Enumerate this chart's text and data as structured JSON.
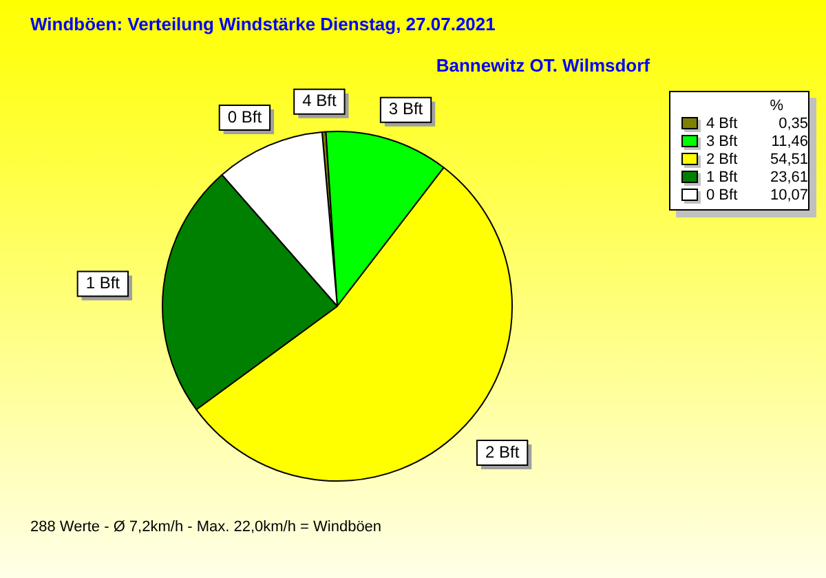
{
  "chart_data": {
    "type": "pie",
    "title": "Windböen: Verteilung Windstärke  Dienstag, 27.07.2021",
    "subtitle": "Bannewitz OT. Wilmsdorf",
    "categories": [
      "4 Bft",
      "3 Bft",
      "2 Bft",
      "1 Bft",
      "0 Bft"
    ],
    "values": [
      0.35,
      11.46,
      54.51,
      23.61,
      10.07
    ],
    "value_labels": [
      "0,35",
      "11,46",
      "54,51",
      "23,61",
      "10,07"
    ],
    "colors": [
      "#808000",
      "#00ff00",
      "#ffff00",
      "#008000",
      "#ffffff"
    ],
    "legend": "top right",
    "legend_title": "%",
    "annotations": [
      "288 Werte   -   Ø 7,2km/h  -  Max. 22,0km/h = Windböen"
    ]
  }
}
